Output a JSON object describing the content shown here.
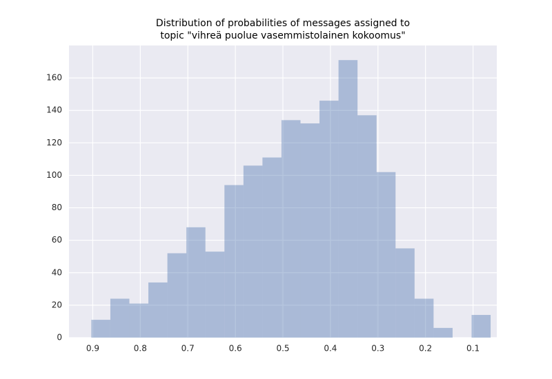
{
  "chart_data": {
    "type": "histogram",
    "title": [
      "Distribution of probabilities of messages assigned to",
      "topic \"vihreä puolue vasemmistolainen kokoomus\""
    ],
    "bins": [
      0.063,
      0.103,
      0.143,
      0.183,
      0.223,
      0.263,
      0.303,
      0.343,
      0.383,
      0.423,
      0.463,
      0.503,
      0.543,
      0.583,
      0.623,
      0.663,
      0.703,
      0.743,
      0.783,
      0.823,
      0.863,
      0.903
    ],
    "values": [
      14,
      0,
      6,
      24,
      55,
      102,
      137,
      171,
      146,
      132,
      134,
      111,
      106,
      94,
      53,
      68,
      52,
      34,
      21,
      24,
      11
    ],
    "color": "#4c72b0",
    "alpha": 0.4,
    "xlim": [
      0.95,
      0.05
    ],
    "xticks": [
      0.9,
      0.8,
      0.7,
      0.6,
      0.5,
      0.4,
      0.3,
      0.2,
      0.1
    ],
    "ylim": [
      0,
      180
    ],
    "yticks": [
      0,
      20,
      40,
      60,
      80,
      100,
      120,
      140,
      160
    ],
    "grid": true
  }
}
